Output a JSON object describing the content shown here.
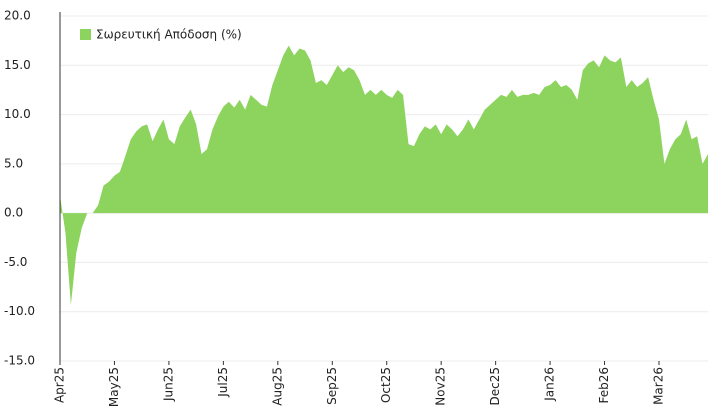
{
  "chart_data": {
    "type": "area",
    "categories": [
      "Apr25",
      null,
      null,
      null,
      null,
      null,
      null,
      null,
      null,
      null,
      "May25",
      null,
      null,
      null,
      null,
      null,
      null,
      null,
      null,
      null,
      "Jun25",
      null,
      null,
      null,
      null,
      null,
      null,
      null,
      null,
      null,
      "Jul25",
      null,
      null,
      null,
      null,
      null,
      null,
      null,
      null,
      null,
      "Aug25",
      null,
      null,
      null,
      null,
      null,
      null,
      null,
      null,
      null,
      "Sep25",
      null,
      null,
      null,
      null,
      null,
      null,
      null,
      null,
      null,
      "Oct25",
      null,
      null,
      null,
      null,
      null,
      null,
      null,
      null,
      null,
      "Nov25",
      null,
      null,
      null,
      null,
      null,
      null,
      null,
      null,
      null,
      "Dec25",
      null,
      null,
      null,
      null,
      null,
      null,
      null,
      null,
      null,
      "Jan26",
      null,
      null,
      null,
      null,
      null,
      null,
      null,
      null,
      null,
      "Feb26",
      null,
      null,
      null,
      null,
      null,
      null,
      null,
      null,
      null,
      "Mar26",
      null,
      null,
      null,
      null,
      null,
      null,
      null,
      null,
      null
    ],
    "series": [
      {
        "name": "Σωρευτική Απόδοση (%)",
        "color": "#8dd45f",
        "values": [
          1.8,
          -2,
          -9.3,
          -4,
          -1.5,
          0,
          0,
          0.8,
          2.8,
          3.2,
          3.8,
          4.2,
          5.8,
          7.5,
          8.3,
          8.8,
          9.0,
          7.3,
          8.5,
          9.5,
          7.5,
          7,
          8.8,
          9.7,
          10.5,
          9,
          6,
          6.5,
          8.5,
          9.8,
          10.8,
          11.3,
          10.7,
          11.5,
          10.5,
          12,
          11.5,
          11,
          10.8,
          13,
          14.5,
          16,
          17,
          16,
          16.7,
          16.5,
          15.5,
          13.2,
          13.5,
          13,
          14,
          15,
          14.3,
          14.8,
          14.5,
          13.5,
          12,
          12.5,
          12,
          12.5,
          12,
          11.7,
          12.5,
          12,
          7,
          6.8,
          8,
          8.8,
          8.5,
          9,
          8,
          9,
          8.5,
          7.8,
          8.5,
          9.5,
          8.5,
          9.5,
          10.5,
          11,
          11.5,
          12,
          11.8,
          12.5,
          11.8,
          12,
          12,
          12.2,
          12,
          12.8,
          13,
          13.5,
          12.8,
          13,
          12.5,
          11.5,
          14.5,
          15.2,
          15.5,
          14.8,
          16,
          15.5,
          15.3,
          15.8,
          12.8,
          13.5,
          12.8,
          13.2,
          13.8,
          11.5,
          9.5,
          5,
          6.5,
          7.5,
          8,
          9.5,
          7.5,
          7.8,
          5,
          6
        ]
      }
    ],
    "ylim": [
      -15,
      20
    ],
    "yticks": [
      {
        "value": -15,
        "label": "-15.0"
      },
      {
        "value": -10,
        "label": "-10.0"
      },
      {
        "value": -5,
        "label": "-5.0"
      },
      {
        "value": 0,
        "label": "0.0"
      },
      {
        "value": 5,
        "label": "5.0"
      },
      {
        "value": 10,
        "label": "10.0"
      },
      {
        "value": 15,
        "label": "15.0"
      },
      {
        "value": 20,
        "label": "20.0"
      }
    ],
    "grid": true,
    "legend": "upper left"
  }
}
